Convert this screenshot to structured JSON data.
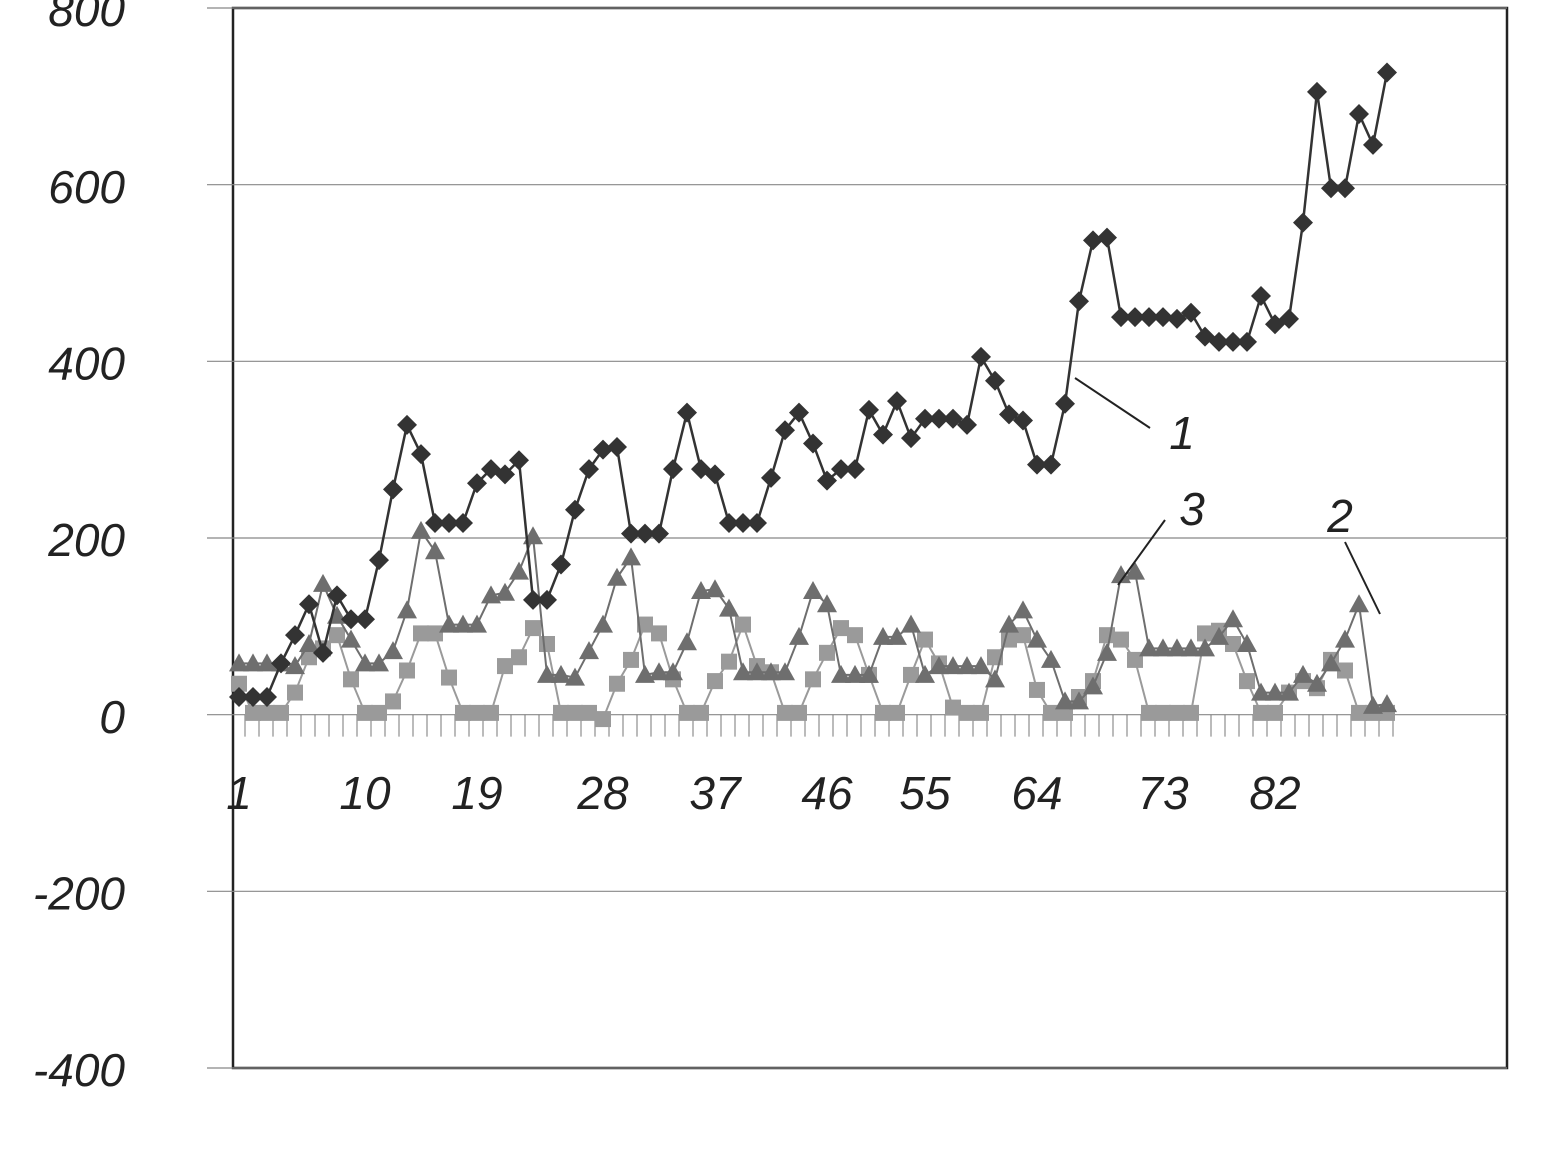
{
  "chart_data": {
    "type": "line",
    "categories": [
      "1",
      null,
      null,
      null,
      null,
      null,
      null,
      null,
      null,
      "10",
      null,
      null,
      null,
      null,
      null,
      null,
      null,
      "19",
      null,
      null,
      null,
      null,
      null,
      null,
      null,
      null,
      "28",
      null,
      null,
      null,
      null,
      null,
      null,
      null,
      "37",
      null,
      null,
      null,
      null,
      null,
      null,
      null,
      "46",
      null,
      null,
      null,
      null,
      null,
      null,
      "55",
      null,
      null,
      null,
      null,
      null,
      null,
      null,
      "64",
      null,
      null,
      null,
      null,
      null,
      null,
      null,
      null,
      "73",
      null,
      null,
      null,
      null,
      null,
      null,
      null,
      "82",
      null,
      null,
      null,
      null,
      null,
      null,
      null,
      null
    ],
    "series": [
      {
        "name": "1",
        "color": "#333333",
        "marker": "diamond",
        "values": [
          20,
          20,
          20,
          58,
          90,
          125,
          70,
          135,
          108,
          108,
          175,
          255,
          328,
          295,
          217,
          217,
          217,
          262,
          278,
          272,
          288,
          130,
          130,
          170,
          232,
          278,
          300,
          303,
          205,
          205,
          205,
          278,
          342,
          278,
          272,
          217,
          217,
          217,
          268,
          322,
          342,
          307,
          265,
          278,
          278,
          345,
          317,
          355,
          313,
          335,
          335,
          335,
          328,
          405,
          378,
          340,
          333,
          283,
          283,
          352,
          468,
          537,
          540,
          450,
          450,
          450,
          450,
          448,
          455,
          428,
          422,
          422,
          422,
          474,
          442,
          448,
          557,
          705,
          596,
          596,
          680,
          645,
          727
        ]
      },
      {
        "name": "2",
        "color": "#9a9a9a",
        "marker": "square",
        "values": [
          35,
          2,
          2,
          2,
          25,
          65,
          75,
          90,
          40,
          2,
          2,
          15,
          50,
          92,
          92,
          42,
          2,
          2,
          2,
          55,
          65,
          98,
          80,
          2,
          2,
          2,
          -5,
          35,
          62,
          102,
          92,
          40,
          2,
          2,
          38,
          60,
          102,
          55,
          48,
          2,
          2,
          40,
          70,
          98,
          90,
          45,
          2,
          2,
          45,
          85,
          58,
          8,
          2,
          2,
          65,
          85,
          90,
          28,
          2,
          2,
          20,
          38,
          90,
          85,
          62,
          2,
          2,
          2,
          2,
          92,
          95,
          80,
          38,
          2,
          2,
          25,
          38,
          30,
          62,
          50,
          2,
          2,
          2
        ]
      },
      {
        "name": "3",
        "color": "#6e6e6e",
        "marker": "triangle",
        "values": [
          58,
          58,
          58,
          58,
          55,
          80,
          148,
          112,
          85,
          58,
          58,
          72,
          118,
          208,
          185,
          102,
          102,
          102,
          135,
          138,
          162,
          202,
          45,
          45,
          42,
          72,
          102,
          155,
          178,
          45,
          48,
          48,
          82,
          140,
          142,
          120,
          48,
          48,
          48,
          48,
          88,
          140,
          125,
          45,
          45,
          45,
          88,
          88,
          102,
          45,
          55,
          55,
          55,
          55,
          40,
          102,
          118,
          85,
          62,
          15,
          15,
          32,
          70,
          158,
          162,
          75,
          75,
          75,
          75,
          75,
          88,
          108,
          80,
          25,
          25,
          25,
          45,
          35,
          58,
          85,
          125,
          10,
          12
        ]
      }
    ],
    "ylim": [
      -400,
      800
    ],
    "yticks": [
      -400,
      -200,
      0,
      200,
      400,
      600,
      800
    ],
    "grid": true
  }
}
